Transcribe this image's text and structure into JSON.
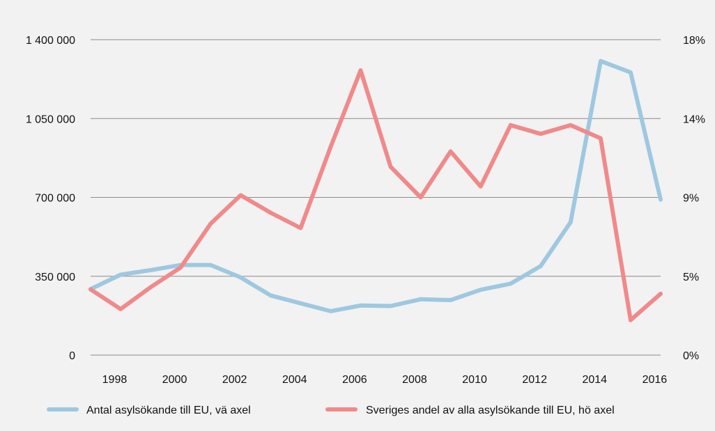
{
  "chart_data": {
    "type": "line",
    "x": [
      1997,
      1998,
      1999,
      2000,
      2001,
      2002,
      2003,
      2004,
      2005,
      2006,
      2007,
      2008,
      2009,
      2010,
      2011,
      2012,
      2013,
      2014,
      2015,
      2016
    ],
    "x_tick_labels": [
      "1998",
      "2000",
      "2002",
      "2004",
      "2006",
      "2008",
      "2010",
      "2012",
      "2014",
      "2016"
    ],
    "x_tick_values": [
      1997.8,
      1999.8,
      2001.8,
      2003.8,
      2005.8,
      2007.8,
      2009.8,
      2011.8,
      2013.8,
      2015.8
    ],
    "y_left": {
      "ticks": [
        0,
        350000,
        700000,
        1050000,
        1400000
      ],
      "tick_labels": [
        "0",
        "350 000",
        "700 000",
        "1 050 000",
        "1 400 000"
      ],
      "ylim": [
        0,
        1400000
      ]
    },
    "y_right": {
      "ticks": [
        0,
        3.6,
        7.2,
        10.8,
        14.4
      ],
      "tick_labels": [
        "0%",
        "5%",
        "9%",
        "14%",
        "18%"
      ],
      "ylim": [
        0,
        14.4
      ]
    },
    "grid": true,
    "legend_position": "bottom",
    "series": [
      {
        "name": "Antal asylsökande till EU, vä axel",
        "axis": "left",
        "color": "#9ec8e0",
        "values": [
          293000,
          357000,
          377000,
          400000,
          400000,
          345000,
          265000,
          230000,
          195000,
          220000,
          218000,
          248000,
          244000,
          290000,
          317000,
          395000,
          590000,
          1305000,
          1255000,
          690000
        ]
      },
      {
        "name": "Sveriges andel av alla asylsökande till EU, hö axel",
        "axis": "right",
        "color": "#f08a8a",
        "values": [
          3.0,
          2.1,
          3.1,
          4.0,
          6.0,
          7.3,
          6.5,
          5.8,
          9.5,
          13.0,
          8.6,
          7.2,
          9.3,
          7.7,
          10.5,
          10.1,
          10.5,
          9.9,
          1.6,
          2.8
        ]
      }
    ]
  }
}
